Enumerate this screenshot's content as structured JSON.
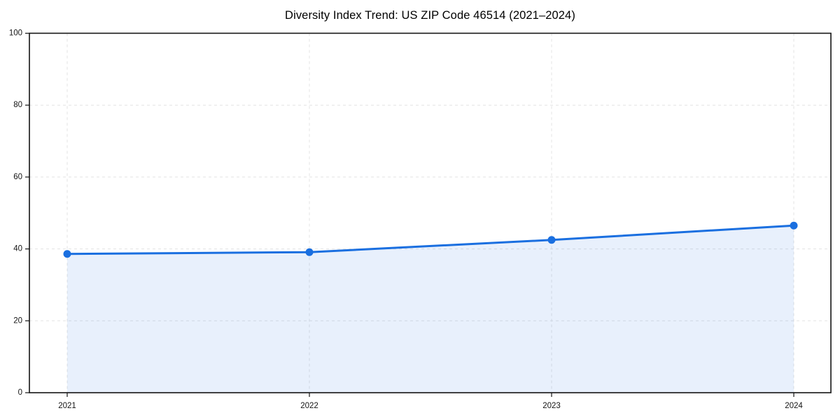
{
  "chart_data": {
    "type": "line",
    "title": "Diversity Index Trend: US ZIP Code 46514 (2021–2024)",
    "x": [
      2021,
      2022,
      2023,
      2024
    ],
    "series": [
      {
        "name": "Diversity Index",
        "values": [
          38.6,
          39.1,
          42.5,
          46.5
        ]
      }
    ],
    "xticks": [
      "2021",
      "2022",
      "2023",
      "2024"
    ],
    "yticks": [
      0,
      20,
      40,
      60,
      80,
      100
    ],
    "ylim": [
      0,
      100
    ],
    "xlabel": "",
    "ylabel": "",
    "grid": "dashed",
    "legend_position": "none",
    "line_color": "#1a6fe0",
    "marker": "circle",
    "marker_color": "#1a6fe0",
    "area_fill": true,
    "area_color": "#1a6fe0",
    "area_opacity": 0.1,
    "background_color": "#ffffff",
    "spine_color": "#141414",
    "grid_color": "#e3e3e3"
  }
}
